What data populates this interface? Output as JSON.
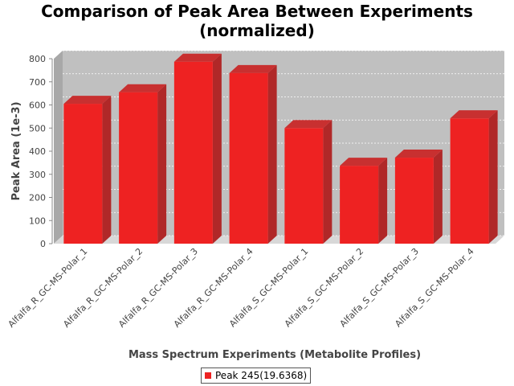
{
  "chart_data": {
    "type": "bar",
    "title": "Comparison of Peak Area Between Experiments\n(normalized)",
    "xlabel": "Mass Spectrum Experiments (Metabolite Profiles)",
    "ylabel": "Peak Area (1e-3)",
    "ylim": [
      0,
      800
    ],
    "yticks": [
      0,
      100,
      200,
      300,
      400,
      500,
      600,
      700,
      800
    ],
    "grid": true,
    "legend_position": "bottom",
    "categories": [
      "Alfalfa_R_GC-MS-Polar_1",
      "Alfalfa_R_GC-MS-Polar_2",
      "Alfalfa_R_GC-MS-Polar_3",
      "Alfalfa_R_GC-MS-Polar_4",
      "Alfalfa_S_GC-MS-Polar_1",
      "Alfalfa_S_GC-MS-Polar_2",
      "Alfalfa_S_GC-MS-Polar_3",
      "Alfalfa_S_GC-MS-Polar_4"
    ],
    "series": [
      {
        "name": "Peak 245(19.6368)",
        "color": "#ee2222",
        "values": [
          605,
          655,
          787,
          738,
          500,
          337,
          372,
          542
        ]
      }
    ]
  }
}
